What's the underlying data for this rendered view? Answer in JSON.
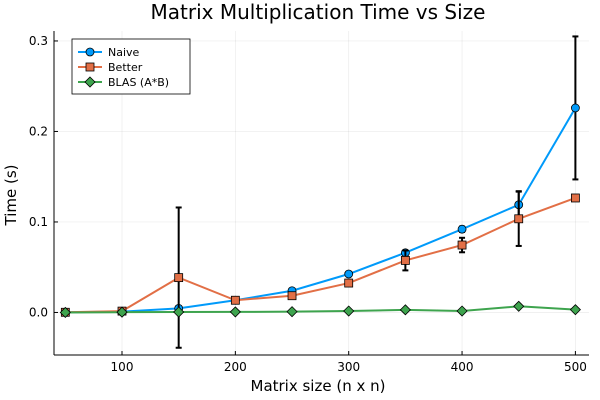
{
  "chart_data": {
    "type": "line",
    "title": "Matrix Multiplication Time vs Size",
    "xlabel": "Matrix size (n x n)",
    "ylabel": "Time (s)",
    "xlim": [
      40,
      512
    ],
    "ylim": [
      -0.047,
      0.311
    ],
    "xticks": [
      100,
      200,
      300,
      400,
      500
    ],
    "xtick_labels": [
      "100",
      "200",
      "300",
      "400",
      "500"
    ],
    "yticks": [
      0.0,
      0.1,
      0.2,
      0.3
    ],
    "ytick_labels": [
      "0.0",
      "0.1",
      "0.2",
      "0.3"
    ],
    "grid": true,
    "legend_position": "top-left",
    "x": [
      50,
      100,
      150,
      200,
      250,
      300,
      350,
      400,
      450,
      500
    ],
    "series": [
      {
        "name": "Naive",
        "marker": "circle",
        "color": "#009AFA",
        "values": [
          0.0002,
          0.0009,
          0.0045,
          0.0135,
          0.024,
          0.0425,
          0.066,
          0.092,
          0.119,
          0.226
        ],
        "error": [
          0.0001,
          0.0002,
          0.0008,
          0.001,
          0.002,
          0.002,
          0.002,
          0.003,
          0.015,
          0.079
        ]
      },
      {
        "name": "Better",
        "marker": "square",
        "color": "#E26F46",
        "values": [
          0.0002,
          0.0015,
          0.0385,
          0.0135,
          0.0185,
          0.0325,
          0.0575,
          0.0745,
          0.1035,
          0.1265
        ],
        "error": [
          0.0001,
          0.0002,
          0.0775,
          0.001,
          0.002,
          0.002,
          0.011,
          0.008,
          0.03,
          0.002
        ]
      },
      {
        "name": "BLAS (A*B)",
        "marker": "diamond",
        "color": "#3EA44E",
        "values": [
          0.0,
          0.0003,
          0.0005,
          0.0006,
          0.0009,
          0.0016,
          0.0029,
          0.0016,
          0.0068,
          0.0031
        ],
        "error": [
          0.0,
          0.0001,
          0.0001,
          0.0001,
          0.0001,
          0.0002,
          0.0002,
          0.0002,
          0.001,
          0.0002
        ]
      }
    ]
  }
}
